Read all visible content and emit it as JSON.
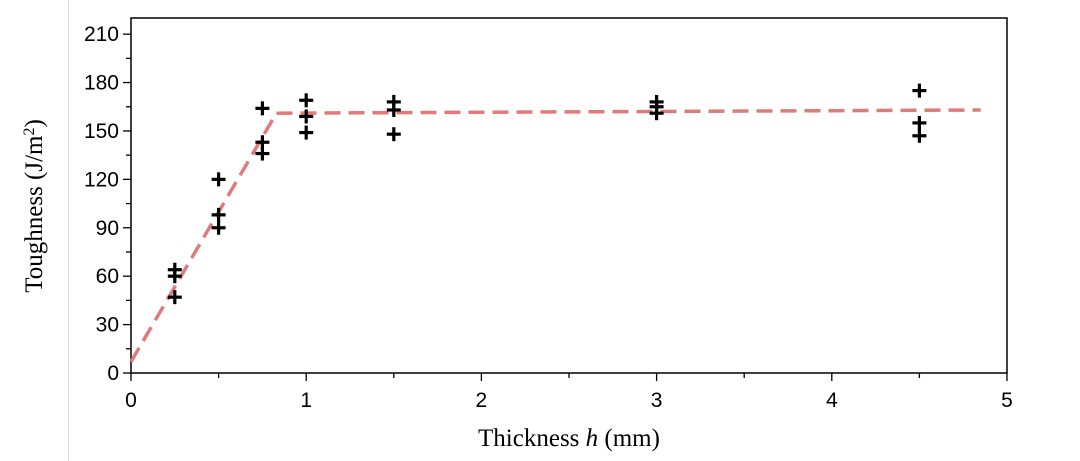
{
  "chart_data": {
    "type": "scatter",
    "title": "",
    "xlabel": "Thickness ",
    "xlabel_var": "h",
    "xlabel_unit": " (mm)",
    "ylabel": "Toughness (J/m",
    "ylabel_sup": "2",
    "ylabel_end": ")",
    "xlim": [
      0,
      5
    ],
    "ylim": [
      0,
      220
    ],
    "x_ticks": [
      0,
      1,
      2,
      3,
      4,
      5
    ],
    "y_ticks": [
      0,
      30,
      60,
      90,
      120,
      150,
      180,
      210
    ],
    "x_minor_step": 0.5,
    "y_minor_step": 15,
    "grid": false,
    "legend": "none",
    "points": [
      {
        "x": 0.25,
        "y": 64
      },
      {
        "x": 0.25,
        "y": 60
      },
      {
        "x": 0.25,
        "y": 47
      },
      {
        "x": 0.5,
        "y": 120
      },
      {
        "x": 0.5,
        "y": 98
      },
      {
        "x": 0.5,
        "y": 90
      },
      {
        "x": 0.75,
        "y": 164
      },
      {
        "x": 0.75,
        "y": 143
      },
      {
        "x": 0.75,
        "y": 136
      },
      {
        "x": 1.0,
        "y": 169
      },
      {
        "x": 1.0,
        "y": 159
      },
      {
        "x": 1.0,
        "y": 149
      },
      {
        "x": 1.5,
        "y": 168
      },
      {
        "x": 1.5,
        "y": 163
      },
      {
        "x": 1.5,
        "y": 148
      },
      {
        "x": 3.0,
        "y": 168
      },
      {
        "x": 3.0,
        "y": 165
      },
      {
        "x": 3.0,
        "y": 161
      },
      {
        "x": 4.5,
        "y": 175
      },
      {
        "x": 4.5,
        "y": 155
      },
      {
        "x": 4.5,
        "y": 147
      }
    ],
    "fit_line": {
      "style": "dashed",
      "color": "#e07b7b",
      "points": [
        [
          0,
          7
        ],
        [
          0.83,
          161
        ],
        [
          4.85,
          163
        ]
      ]
    },
    "marker": "plus",
    "marker_color": "#000000"
  }
}
